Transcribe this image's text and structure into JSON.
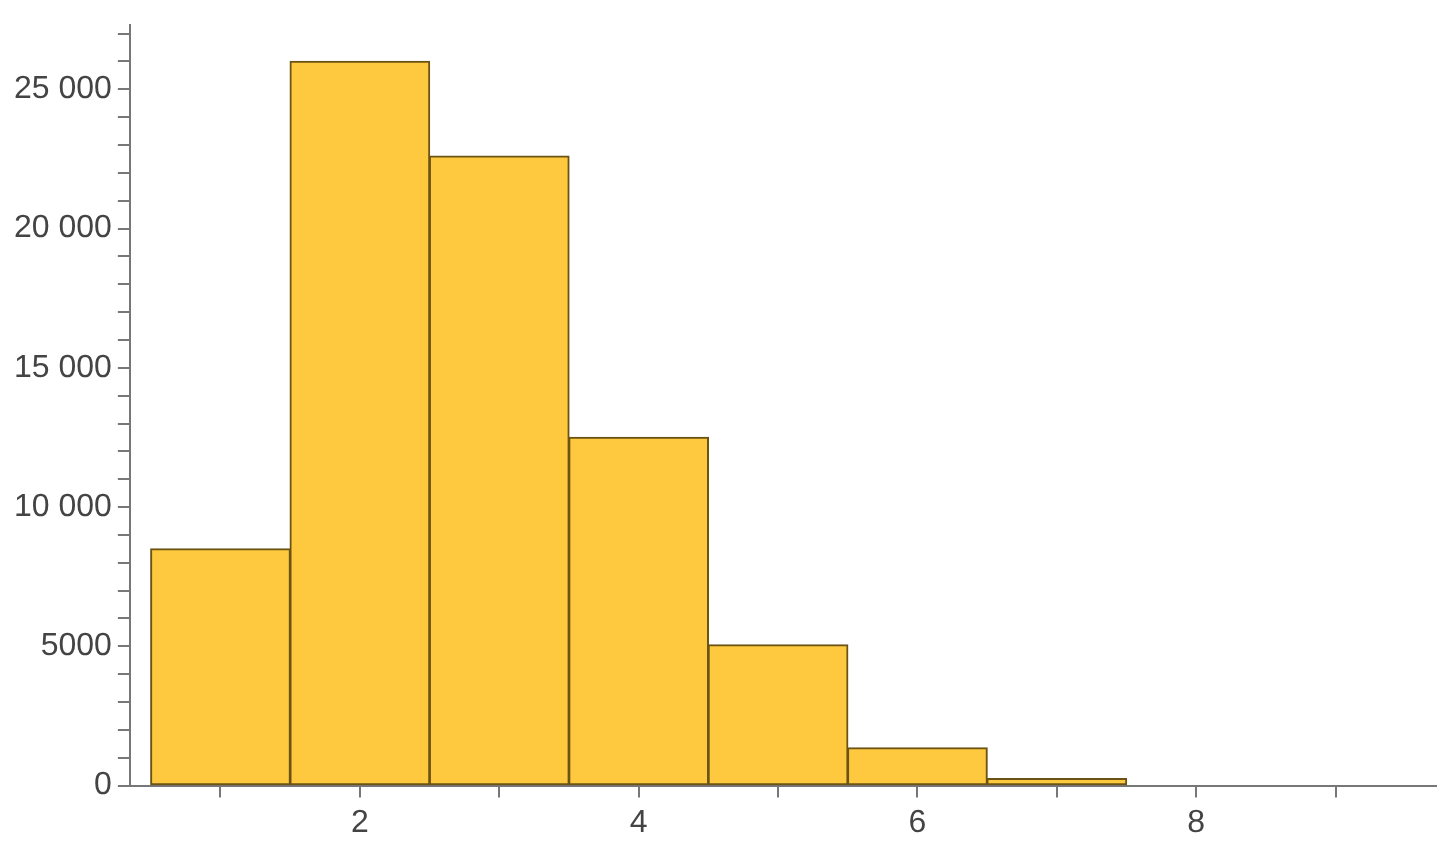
{
  "chart_data": {
    "type": "histogram",
    "bins": [
      0.5,
      1.5,
      2.5,
      3.5,
      4.5,
      5.5,
      6.5,
      7.5
    ],
    "values": [
      8500,
      26000,
      22600,
      12500,
      5050,
      1350,
      250
    ],
    "color": "#fec93f",
    "xlim": [
      0.35,
      9.72
    ],
    "xticks": [
      {
        "value": 1,
        "label": null
      },
      2,
      {
        "value": 3,
        "label": null
      },
      4,
      {
        "value": 5,
        "label": null
      },
      6,
      {
        "value": 7,
        "label": null
      },
      8,
      {
        "value": 9,
        "label": null
      }
    ],
    "ylim": [
      0,
      27300
    ],
    "yticks": [
      0,
      {
        "value": 1000,
        "label": null
      },
      {
        "value": 2000,
        "label": null
      },
      {
        "value": 3000,
        "label": null
      },
      {
        "value": 4000,
        "label": null
      },
      5000,
      {
        "value": 6000,
        "label": null
      },
      {
        "value": 7000,
        "label": null
      },
      {
        "value": 8000,
        "label": null
      },
      {
        "value": 9000,
        "label": null
      },
      {
        "value": 10000,
        "label": "10 000"
      },
      {
        "value": 11000,
        "label": null
      },
      {
        "value": 12000,
        "label": null
      },
      {
        "value": 13000,
        "label": null
      },
      {
        "value": 14000,
        "label": null
      },
      {
        "value": 15000,
        "label": "15 000"
      },
      {
        "value": 16000,
        "label": null
      },
      {
        "value": 17000,
        "label": null
      },
      {
        "value": 18000,
        "label": null
      },
      {
        "value": 19000,
        "label": null
      },
      {
        "value": 20000,
        "label": "20 000"
      },
      {
        "value": 21000,
        "label": null
      },
      {
        "value": 22000,
        "label": null
      },
      {
        "value": 23000,
        "label": null
      },
      {
        "value": 24000,
        "label": null
      },
      {
        "value": 25000,
        "label": "25 000"
      },
      {
        "value": 26000,
        "label": null
      },
      {
        "value": 27000,
        "label": null
      }
    ],
    "grid": false
  }
}
